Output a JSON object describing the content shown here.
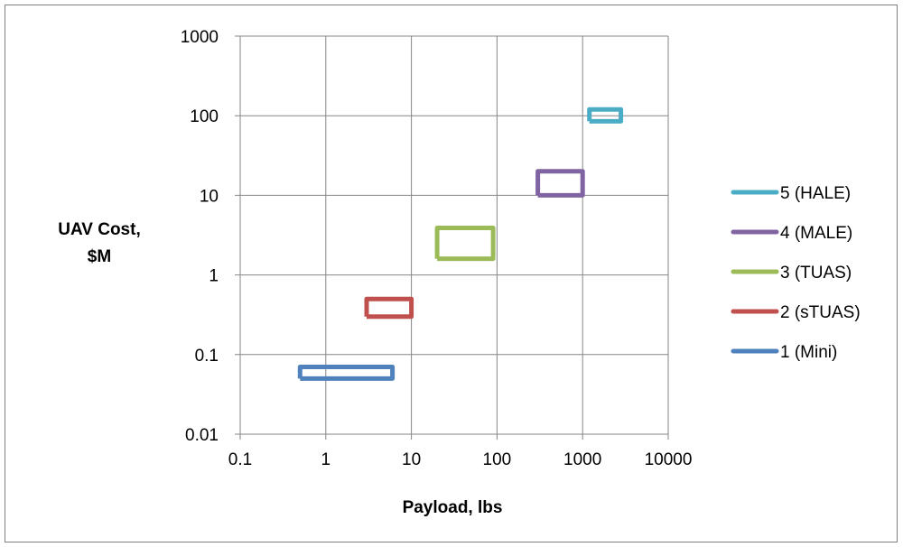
{
  "chart_data": {
    "type": "scatter",
    "xlabel": "Payload, lbs",
    "ylabel_lines": [
      "UAV Cost,",
      "$M"
    ],
    "x_scale": "log",
    "y_scale": "log",
    "xlim": [
      0.1,
      10000
    ],
    "ylim": [
      0.01,
      1000
    ],
    "x_ticks": [
      "0.1",
      "1",
      "10",
      "100",
      "1000",
      "10000"
    ],
    "y_ticks": [
      "0.01",
      "0.1",
      "1",
      "10",
      "100",
      "1000"
    ],
    "grid": true,
    "legend_position": "right",
    "series": [
      {
        "name": "5 (HALE)",
        "color": "#4bacc6",
        "x": [
          1200,
          2800,
          2800,
          1200,
          1200
        ],
        "y": [
          85,
          85,
          120,
          120,
          85
        ]
      },
      {
        "name": "4 (MALE)",
        "color": "#8064a2",
        "x": [
          300,
          1000,
          1000,
          300,
          300
        ],
        "y": [
          10,
          10,
          20,
          20,
          10
        ]
      },
      {
        "name": "3 (TUAS)",
        "color": "#9bbb59",
        "x": [
          20,
          90,
          90,
          20,
          20
        ],
        "y": [
          1.6,
          1.6,
          3.9,
          3.9,
          1.6
        ]
      },
      {
        "name": "2 (sTUAS)",
        "color": "#c0504d",
        "x": [
          3,
          10,
          10,
          3,
          3
        ],
        "y": [
          0.3,
          0.3,
          0.5,
          0.5,
          0.3
        ]
      },
      {
        "name": "1 (Mini)",
        "color": "#4f81bd",
        "x": [
          0.5,
          6,
          6,
          0.5,
          0.5
        ],
        "y": [
          0.05,
          0.05,
          0.07,
          0.07,
          0.05
        ]
      }
    ]
  }
}
